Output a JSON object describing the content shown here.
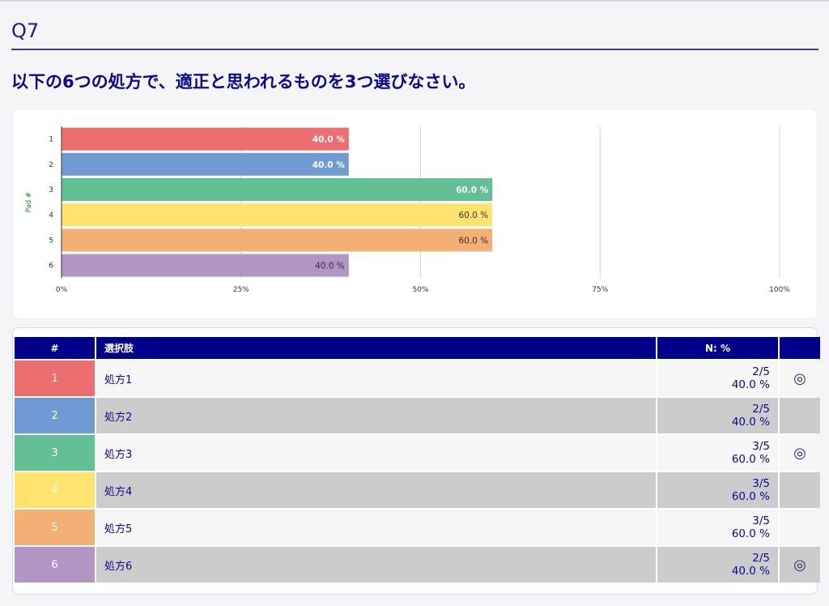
{
  "header": {
    "q_number": "Q7"
  },
  "question": {
    "text": "以下の6つの処方で、適正と思われるものを3つ選びなさい。"
  },
  "chart_data": {
    "type": "bar",
    "orientation": "horizontal",
    "ylabel": "Pad #",
    "categories": [
      "1",
      "2",
      "3",
      "4",
      "5",
      "6"
    ],
    "values": [
      40.0,
      40.0,
      60.0,
      60.0,
      60.0,
      40.0
    ],
    "data_labels": [
      "40.0 %",
      "40.0 %",
      "60.0 %",
      "60.0 %",
      "60.0 %",
      "40.0 %"
    ],
    "xlim": [
      0,
      100
    ],
    "xticks": [
      "0%",
      "25%",
      "50%",
      "75%",
      "100%"
    ],
    "grid": true,
    "bar_colors": [
      "#ec6e6e",
      "#6f9ad4",
      "#63c095",
      "#ffe36e",
      "#f4b074",
      "#b095c5"
    ],
    "label_colors": [
      "#ffffff",
      "#ffffff",
      "#ffffff",
      "#333333",
      "#333333",
      "#333333"
    ]
  },
  "table": {
    "headers": {
      "num": "#",
      "choice": "選択肢",
      "n": "N: %",
      "mark": ""
    },
    "rows": [
      {
        "num": "1",
        "choice": "処方1",
        "fraction": "2/5",
        "percent": "40.0 %",
        "mark": "◎",
        "color": "#ec6e6e"
      },
      {
        "num": "2",
        "choice": "処方2",
        "fraction": "2/5",
        "percent": "40.0 %",
        "mark": "",
        "color": "#6f9ad4"
      },
      {
        "num": "3",
        "choice": "処方3",
        "fraction": "3/5",
        "percent": "60.0 %",
        "mark": "◎",
        "color": "#63c095"
      },
      {
        "num": "4",
        "choice": "処方4",
        "fraction": "3/5",
        "percent": "60.0 %",
        "mark": "",
        "color": "#ffe36e"
      },
      {
        "num": "5",
        "choice": "処方5",
        "fraction": "3/5",
        "percent": "60.0 %",
        "mark": "",
        "color": "#f4b074"
      },
      {
        "num": "6",
        "choice": "処方6",
        "fraction": "2/5",
        "percent": "40.0 %",
        "mark": "◎",
        "color": "#b095c5"
      }
    ]
  }
}
